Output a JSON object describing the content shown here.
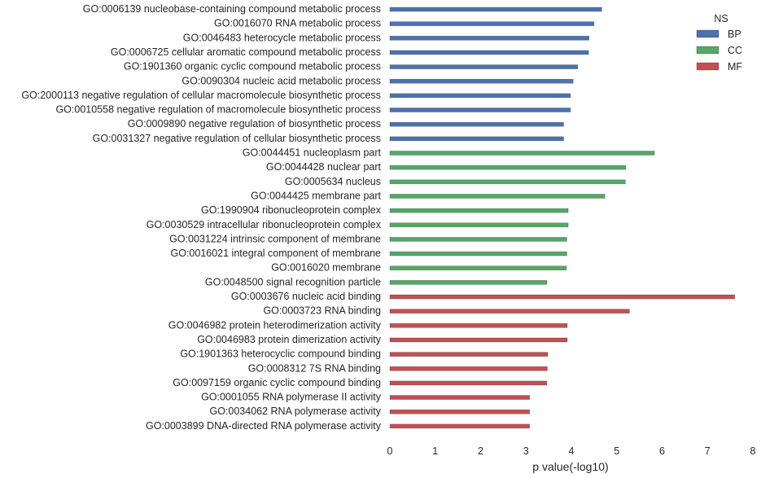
{
  "chart_data": {
    "type": "bar",
    "orientation": "horizontal",
    "xlabel": "p value(-log10)",
    "xlim": [
      0,
      8
    ],
    "xticks": [
      "0",
      "1",
      "2",
      "3",
      "4",
      "5",
      "6",
      "7",
      "8"
    ],
    "grid": false,
    "legend": {
      "title": "NS",
      "placement": "top-right",
      "entries": [
        {
          "name": "BP",
          "color": "#4c72b0"
        },
        {
          "name": "CC",
          "color": "#55a868"
        },
        {
          "name": "MF",
          "color": "#c44e52"
        }
      ]
    },
    "categories": [
      "GO:0006139 nucleobase-containing compound metabolic process",
      "GO:0016070 RNA metabolic process",
      "GO:0046483 heterocycle metabolic process",
      "GO:0006725 cellular aromatic compound metabolic process",
      "GO:1901360 organic cyclic compound metabolic process",
      "GO:0090304 nucleic acid metabolic process",
      "GO:2000113 negative regulation of cellular macromolecule biosynthetic process",
      "GO:0010558 negative regulation of macromolecule biosynthetic process",
      "GO:0009890 negative regulation of biosynthetic process",
      "GO:0031327 negative regulation of cellular biosynthetic process",
      "GO:0044451 nucleoplasm part",
      "GO:0044428 nuclear part",
      "GO:0005634 nucleus",
      "GO:0044425 membrane part",
      "GO:1990904 ribonucleoprotein complex",
      "GO:0030529 intracellular ribonucleoprotein complex",
      "GO:0031224 intrinsic component of membrane",
      "GO:0016021 integral component of membrane",
      "GO:0016020 membrane",
      "GO:0048500 signal recognition particle",
      "GO:0003676 nucleic acid binding",
      "GO:0003723 RNA binding",
      "GO:0046982 protein heterodimerization activity",
      "GO:0046983 protein dimerization activity",
      "GO:1901363 heterocyclic compound binding",
      "GO:0008312 7S RNA binding",
      "GO:0097159 organic cyclic compound binding",
      "GO:0001055 RNA polymerase II activity",
      "GO:0034062 RNA polymerase activity",
      "GO:0003899 DNA-directed RNA polymerase activity"
    ],
    "groups": [
      "BP",
      "BP",
      "BP",
      "BP",
      "BP",
      "BP",
      "BP",
      "BP",
      "BP",
      "BP",
      "CC",
      "CC",
      "CC",
      "CC",
      "CC",
      "CC",
      "CC",
      "CC",
      "CC",
      "CC",
      "MF",
      "MF",
      "MF",
      "MF",
      "MF",
      "MF",
      "MF",
      "MF",
      "MF",
      "MF"
    ],
    "values": [
      4.67,
      4.5,
      4.39,
      4.38,
      4.14,
      4.04,
      3.98,
      3.98,
      3.83,
      3.83,
      5.83,
      5.2,
      5.19,
      4.74,
      3.93,
      3.93,
      3.9,
      3.9,
      3.89,
      3.46,
      7.6,
      5.28,
      3.91,
      3.91,
      3.48,
      3.47,
      3.46,
      3.08,
      3.08,
      3.08
    ]
  }
}
